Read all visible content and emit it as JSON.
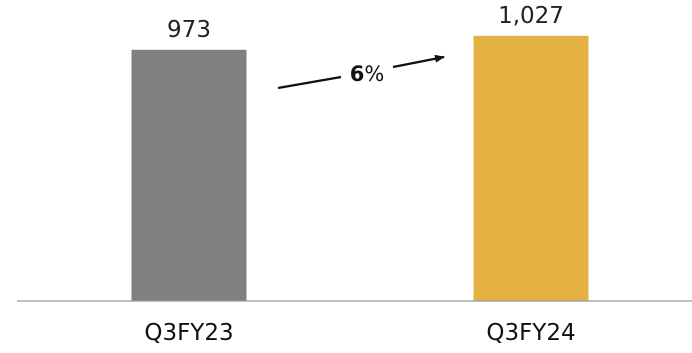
{
  "chart_data": {
    "type": "bar",
    "categories": [
      "Q3FY23",
      "Q3FY24"
    ],
    "values": [
      973,
      1027
    ],
    "value_labels": [
      "973",
      "1,027"
    ],
    "colors": [
      "#808080",
      "#E3B042"
    ],
    "growth": {
      "number": "6",
      "unit": "%"
    },
    "ylim": [
      0,
      1100
    ],
    "grid": false
  }
}
